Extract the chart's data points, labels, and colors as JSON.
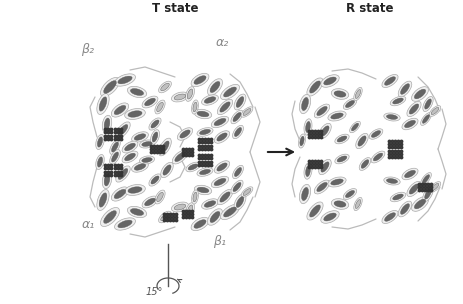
{
  "background_color": "#ffffff",
  "left_label": "T state",
  "right_label": "R state",
  "rotation_label": "15°",
  "alpha1": "α₁",
  "beta1": "β₁",
  "beta2": "β₂",
  "alpha2": "α₂",
  "fig_width": 4.63,
  "fig_height": 3.04,
  "dpi": 100,
  "label_color": "#888888",
  "arrow_color": "#333333",
  "text_color": "#222222"
}
